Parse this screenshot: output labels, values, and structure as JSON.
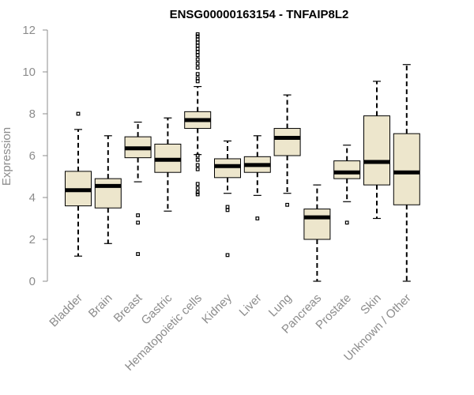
{
  "chart_data": {
    "type": "boxplot",
    "title": "ENSG00000163154 - TNFAIP8L2",
    "xlabel": "",
    "ylabel": "Expression",
    "ylim": [
      0,
      12
    ],
    "yticks": [
      0,
      2,
      4,
      6,
      8,
      10,
      12
    ],
    "categories": [
      "Bladder",
      "Brain",
      "Breast",
      "Gastric",
      "Hematopoietic cells",
      "Kidney",
      "Liver",
      "Lung",
      "Pancreas",
      "Prostate",
      "Skin",
      "Unknown / Other"
    ],
    "x_tick_labels": [
      "Bladder",
      "Brain",
      "Breast",
      "Gastric",
      "Hematopoietic cells",
      "Kidney",
      "Liver",
      "Lung",
      "Pancreas",
      "Prostate",
      "Skin",
      "Unknown / Other"
    ],
    "box_color": "#ede6cc",
    "boxes": [
      {
        "name": "Bladder",
        "min": 1.2,
        "q1": 3.6,
        "median": 4.35,
        "q3": 5.25,
        "max": 7.25,
        "outliers": [
          8.0
        ]
      },
      {
        "name": "Brain",
        "min": 1.8,
        "q1": 3.5,
        "median": 4.55,
        "q3": 4.9,
        "max": 6.95,
        "outliers": []
      },
      {
        "name": "Breast",
        "min": 4.75,
        "q1": 5.9,
        "median": 6.35,
        "q3": 6.9,
        "max": 7.6,
        "outliers": [
          3.15,
          2.8,
          1.3
        ]
      },
      {
        "name": "Gastric",
        "min": 3.35,
        "q1": 5.2,
        "median": 5.8,
        "q3": 6.55,
        "max": 7.8,
        "outliers": []
      },
      {
        "name": "Hematopoietic cells",
        "min": 6.05,
        "q1": 7.3,
        "median": 7.7,
        "q3": 8.1,
        "max": 9.3,
        "outliers": [
          11.8,
          11.7,
          11.55,
          11.4,
          11.25,
          11.1,
          10.95,
          10.8,
          10.6,
          10.4,
          10.2,
          9.9,
          9.7,
          9.55,
          6.0,
          5.8,
          5.55,
          5.35,
          4.65,
          4.45,
          4.25,
          4.15
        ]
      },
      {
        "name": "Kidney",
        "min": 4.2,
        "q1": 4.95,
        "median": 5.5,
        "q3": 5.85,
        "max": 6.7,
        "outliers": [
          3.55,
          3.4,
          1.25
        ]
      },
      {
        "name": "Liver",
        "min": 4.1,
        "q1": 5.2,
        "median": 5.55,
        "q3": 5.95,
        "max": 6.95,
        "outliers": [
          3.0
        ]
      },
      {
        "name": "Lung",
        "min": 4.2,
        "q1": 6.0,
        "median": 6.85,
        "q3": 7.3,
        "max": 8.9,
        "outliers": [
          3.65
        ]
      },
      {
        "name": "Pancreas",
        "min": 0.0,
        "q1": 2.0,
        "median": 3.05,
        "q3": 3.45,
        "max": 4.6,
        "outliers": []
      },
      {
        "name": "Prostate",
        "min": 3.8,
        "q1": 4.9,
        "median": 5.2,
        "q3": 5.75,
        "max": 6.5,
        "outliers": [
          2.8
        ]
      },
      {
        "name": "Skin",
        "min": 3.0,
        "q1": 4.6,
        "median": 5.7,
        "q3": 7.9,
        "max": 9.55,
        "outliers": []
      },
      {
        "name": "Unknown / Other",
        "min": 0.0,
        "q1": 3.65,
        "median": 5.2,
        "q3": 7.05,
        "max": 10.35,
        "outliers": []
      }
    ]
  }
}
